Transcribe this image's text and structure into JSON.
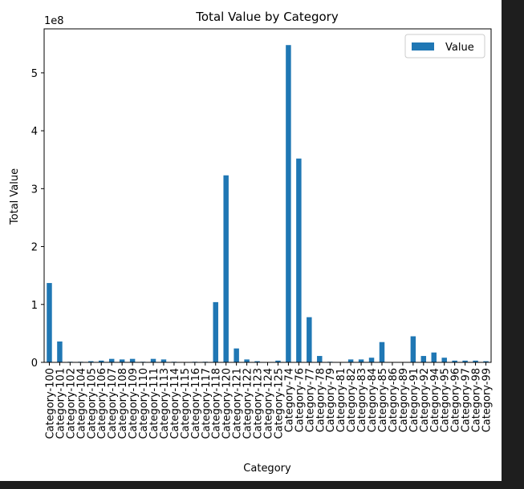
{
  "chart_data": {
    "type": "bar",
    "title": "Total Value by Category",
    "x_label": "Category",
    "y_label": "Total Value",
    "y_offset_label": "1e8",
    "categories": [
      "Category-100",
      "Category-101",
      "Category-102",
      "Category-104",
      "Category-105",
      "Category-106",
      "Category-107",
      "Category-108",
      "Category-109",
      "Category-110",
      "Category-111",
      "Category-113",
      "Category-114",
      "Category-115",
      "Category-116",
      "Category-117",
      "Category-118",
      "Category-120",
      "Category-121",
      "Category-122",
      "Category-123",
      "Category-124",
      "Category-125",
      "Category-74",
      "Category-76",
      "Category-77",
      "Category-78",
      "Category-79",
      "Category-81",
      "Category-82",
      "Category-83",
      "Category-84",
      "Category-85",
      "Category-86",
      "Category-89",
      "Category-91",
      "Category-92",
      "Category-94",
      "Category-95",
      "Category-96",
      "Category-97",
      "Category-98",
      "Category-99"
    ],
    "series": [
      {
        "name": "Value",
        "color": "#1f77b4",
        "values": [
          137000000,
          36000000,
          1000000,
          1000000,
          2000000,
          3000000,
          6000000,
          5000000,
          6000000,
          1000000,
          6000000,
          5000000,
          1000000,
          0,
          1000000,
          1000000,
          104000000,
          323000000,
          24000000,
          5000000,
          2000000,
          0,
          3000000,
          548000000,
          352000000,
          78000000,
          11000000,
          1000000,
          0,
          5000000,
          5000000,
          8000000,
          35000000,
          0,
          0,
          45000000,
          11000000,
          17000000,
          8000000,
          3000000,
          3000000,
          3000000,
          2000000
        ]
      }
    ],
    "ylim": [
      0,
      576000000
    ],
    "yticks": [
      0,
      {
        "value": 100000000,
        "label": "1"
      },
      {
        "value": 200000000,
        "label": "2"
      },
      {
        "value": 300000000,
        "label": "3"
      },
      {
        "value": 400000000,
        "label": "4"
      },
      {
        "value": 500000000,
        "label": "5"
      }
    ],
    "legend": "upper right",
    "grid": false
  }
}
